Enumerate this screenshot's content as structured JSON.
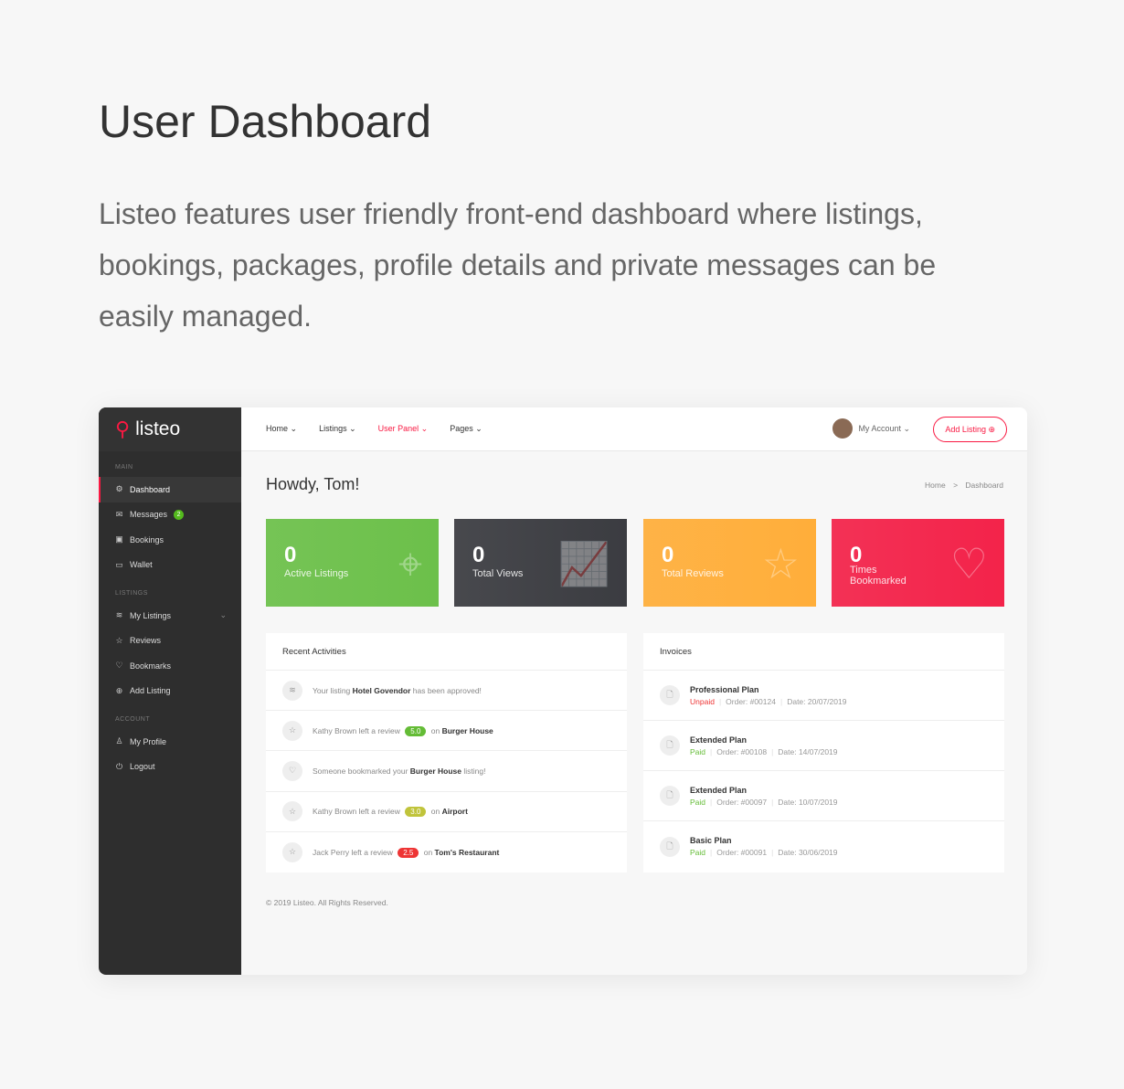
{
  "hero": {
    "title": "User Dashboard",
    "description": "Listeo features user friendly front-end dashboard where listings, bookings, packages, profile details and private messages can be easily managed."
  },
  "sidebar": {
    "logo": "listeo",
    "sections": [
      {
        "label": "MAIN",
        "items": [
          {
            "label": "Dashboard",
            "icon": "gear-icon",
            "glyph": "⚙",
            "active": true
          },
          {
            "label": "Messages",
            "icon": "envelope-icon",
            "glyph": "✉",
            "badge": "2"
          },
          {
            "label": "Bookings",
            "icon": "calendar-icon",
            "glyph": "▣"
          },
          {
            "label": "Wallet",
            "icon": "wallet-icon",
            "glyph": "▭"
          }
        ]
      },
      {
        "label": "LISTINGS",
        "items": [
          {
            "label": "My Listings",
            "icon": "layers-icon",
            "glyph": "≋",
            "chevron": true
          },
          {
            "label": "Reviews",
            "icon": "star-icon",
            "glyph": "☆"
          },
          {
            "label": "Bookmarks",
            "icon": "heart-icon",
            "glyph": "♡"
          },
          {
            "label": "Add Listing",
            "icon": "plus-circle-icon",
            "glyph": "⊕"
          }
        ]
      },
      {
        "label": "ACCOUNT",
        "items": [
          {
            "label": "My Profile",
            "icon": "user-icon",
            "glyph": "♙"
          },
          {
            "label": "Logout",
            "icon": "power-icon",
            "glyph": "⏻"
          }
        ]
      }
    ]
  },
  "topnav": {
    "items": [
      {
        "label": "Home ⌄"
      },
      {
        "label": "Listings ⌄"
      },
      {
        "label": "User Panel ⌄",
        "active": true
      },
      {
        "label": "Pages ⌄"
      }
    ],
    "account": "My Account ⌄",
    "add_listing": "Add Listing ⊕"
  },
  "main": {
    "greeting": "Howdy, Tom!",
    "breadcrumb": [
      "Home",
      ">",
      "Dashboard"
    ],
    "stats": [
      {
        "value": "0",
        "label": "Active Listings",
        "color": "#6cc04a",
        "icon": "map-icon",
        "glyph": "⌖"
      },
      {
        "value": "0",
        "label": "Total Views",
        "color": "#3b3c41",
        "icon": "line-chart-icon",
        "glyph": "📈"
      },
      {
        "value": "0",
        "label": "Total Reviews",
        "color": "#ffae3a",
        "icon": "star-user-icon",
        "glyph": "☆"
      },
      {
        "value": "0",
        "label": "Times Bookmarked",
        "color": "#f3234a",
        "icon": "heart-icon",
        "glyph": "♡"
      }
    ],
    "activities": {
      "title": "Recent Activities",
      "items": [
        {
          "icon": "layers-icon",
          "glyph": "≋",
          "pre": "Your listing ",
          "bold": "Hotel Govendor",
          "post": " has been approved!"
        },
        {
          "icon": "star-icon",
          "glyph": "☆",
          "pre": "Kathy Brown left a review ",
          "rating": "5.0",
          "rating_color": "#64bc36",
          "mid": " on ",
          "bold": "Burger House"
        },
        {
          "icon": "heart-icon",
          "glyph": "♡",
          "pre": "Someone bookmarked your ",
          "bold": "Burger House",
          "post": " listing!"
        },
        {
          "icon": "star-icon",
          "glyph": "☆",
          "pre": "Kathy Brown left a review ",
          "rating": "3.0",
          "rating_color": "#c0c43b",
          "mid": " on ",
          "bold": "Airport"
        },
        {
          "icon": "star-icon",
          "glyph": "☆",
          "pre": "Jack Perry left a review ",
          "rating": "2.5",
          "rating_color": "#ee3535",
          "mid": " on ",
          "bold": "Tom's Restaurant"
        }
      ]
    },
    "invoices": {
      "title": "Invoices",
      "items": [
        {
          "plan": "Professional Plan",
          "status": "Unpaid",
          "status_color": "#ee3535",
          "order": "Order: #00124",
          "date": "Date: 20/07/2019"
        },
        {
          "plan": "Extended Plan",
          "status": "Paid",
          "status_color": "#64bc36",
          "order": "Order: #00108",
          "date": "Date: 14/07/2019"
        },
        {
          "plan": "Extended Plan",
          "status": "Paid",
          "status_color": "#64bc36",
          "order": "Order: #00097",
          "date": "Date: 10/07/2019"
        },
        {
          "plan": "Basic Plan",
          "status": "Paid",
          "status_color": "#64bc36",
          "order": "Order: #00091",
          "date": "Date: 30/06/2019"
        }
      ]
    },
    "footer": "© 2019 Listeo. All Rights Reserved."
  }
}
